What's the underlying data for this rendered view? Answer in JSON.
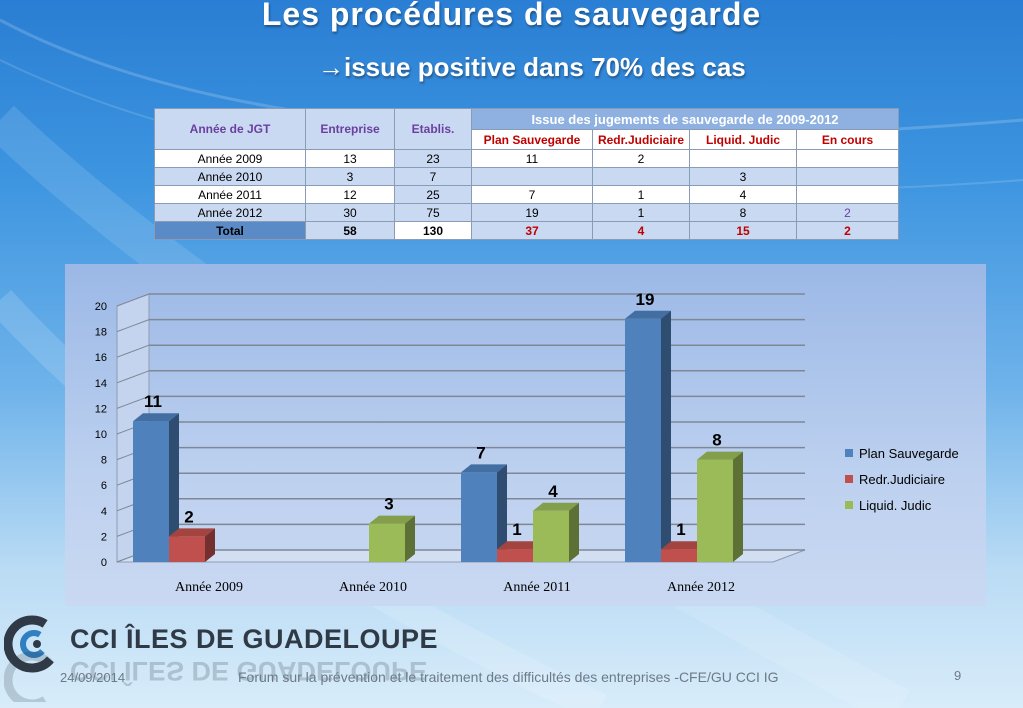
{
  "slide": {
    "title": "Les procédures de sauvegarde",
    "subtitle_arrow": "→",
    "subtitle": "issue positive dans 70% des cas"
  },
  "table": {
    "col_year": "Année de JGT",
    "col_ent": "Entreprise",
    "col_etab": "Etablis.",
    "issue_header": "Issue des  jugements de sauvegarde de 2009-2012",
    "sub_headers": [
      "Plan Sauvegarde",
      "Redr.Judiciaire",
      "Liquid. Judic",
      "En cours"
    ],
    "rows": [
      {
        "year": "Année 2009",
        "ent": "13",
        "etab": "23",
        "plan": "11",
        "redr": "2",
        "liquid": "",
        "cours": ""
      },
      {
        "year": "Année 2010",
        "ent": "3",
        "etab": "7",
        "plan": "",
        "redr": "",
        "liquid": "3",
        "cours": ""
      },
      {
        "year": "Année 2011",
        "ent": "12",
        "etab": "25",
        "plan": "7",
        "redr": "1",
        "liquid": "4",
        "cours": ""
      },
      {
        "year": "Année 2012",
        "ent": "30",
        "etab": "75",
        "plan": "19",
        "redr": "1",
        "liquid": "8",
        "cours": "2"
      }
    ],
    "total": {
      "label": "Total",
      "ent": "58",
      "etab": "130",
      "plan": "37",
      "redr": "4",
      "liquid": "15",
      "cours": "2"
    }
  },
  "chart_data": {
    "type": "bar",
    "categories": [
      "Année 2009",
      "Année 2010",
      "Année 2011",
      "Année 2012"
    ],
    "series": [
      {
        "name": "Plan Sauvegarde",
        "values": [
          11,
          null,
          7,
          19
        ],
        "color": "#4f81bd"
      },
      {
        "name": "Redr.Judiciaire",
        "values": [
          2,
          null,
          1,
          1
        ],
        "color": "#c0504d"
      },
      {
        "name": "Liquid. Judic",
        "values": [
          null,
          3,
          4,
          8
        ],
        "color": "#9bbb59"
      }
    ],
    "ylim": [
      0,
      20
    ],
    "yticks": [
      "0",
      "2",
      "4",
      "6",
      "8",
      "10",
      "12",
      "14",
      "16",
      "18",
      "20"
    ],
    "grid": true,
    "legend": "right"
  },
  "logo": {
    "text": "CCI ÎLES DE GUADELOUPE"
  },
  "footer": {
    "date": "24/09/2014",
    "text": "Forum sur la prévention et le traitement des difficultés des entreprises -CFE/GU CCI IG",
    "page": "9"
  }
}
